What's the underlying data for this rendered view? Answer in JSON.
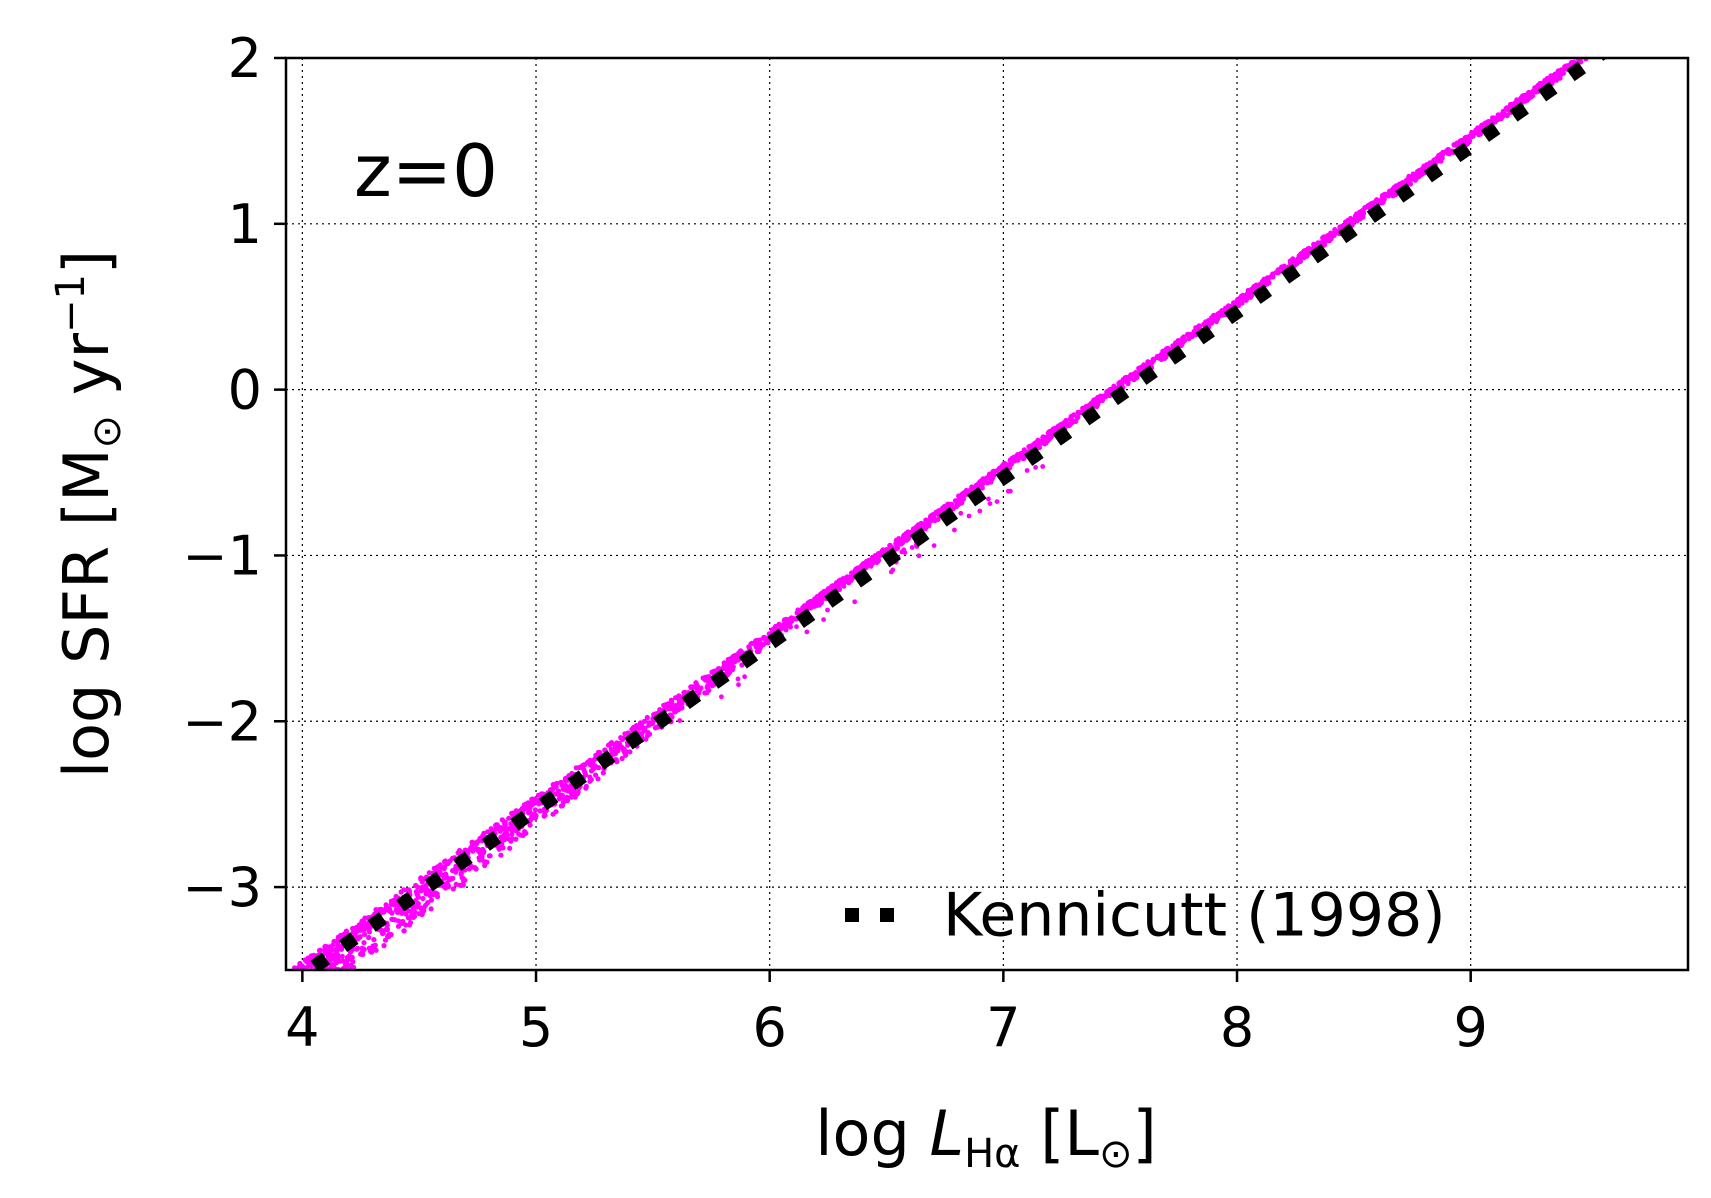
{
  "chart_data": {
    "type": "scatter",
    "annotation": "z=0",
    "xlabel": {
      "prefix": "log ",
      "var": "L",
      "sub": "Hα",
      "unit": " [L",
      "sun": "⊙",
      "close": "]"
    },
    "ylabel": {
      "prefix": "log SFR [M",
      "sun": "⊙",
      "mid": " yr",
      "sup": "−1",
      "close": "]"
    },
    "xlim": [
      3.93,
      9.93
    ],
    "ylim": [
      -3.5,
      2.0
    ],
    "xticks": [
      4,
      5,
      6,
      7,
      8,
      9
    ],
    "yticks": [
      -3,
      -2,
      -1,
      0,
      1,
      2
    ],
    "xtick_labels": [
      "4",
      "5",
      "6",
      "7",
      "8",
      "9"
    ],
    "ytick_labels": [
      "−3",
      "−2",
      "−1",
      "0",
      "1",
      "2"
    ],
    "grid": true,
    "legend": {
      "placement": "lower-right",
      "entries": [
        {
          "label": "Kennicutt (1998)",
          "marker": "dotted"
        }
      ]
    },
    "series": [
      {
        "kind": "scatter",
        "color": "#ff00ff",
        "trend": {
          "slope": 1.0,
          "intercept": -7.475,
          "x_range": [
            3.93,
            9.55
          ]
        },
        "lower_envelope_offset": {
          "at_x": 4.0,
          "value": -0.25,
          "fades_by_x": 6.3
        }
      },
      {
        "name": "Kennicutt (1998)",
        "kind": "line",
        "style": "dotted",
        "color": "#000000",
        "x": [
          3.93,
          9.93
        ],
        "y": [
          -3.601,
          2.397
        ]
      }
    ]
  }
}
